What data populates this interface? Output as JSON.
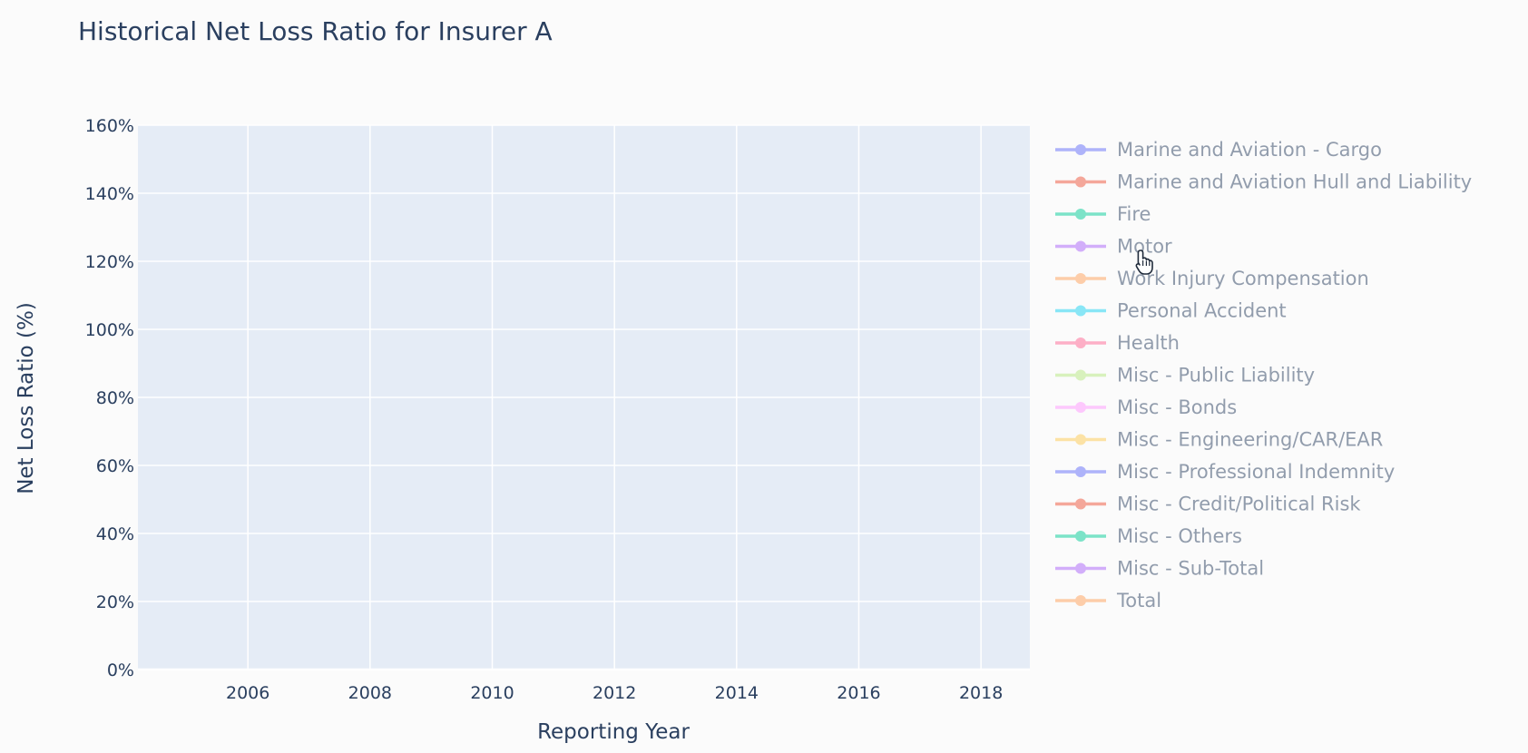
{
  "chart_data": {
    "type": "line",
    "title": "Historical Net Loss Ratio for Insurer A",
    "xlabel": "Reporting Year",
    "ylabel": "Net Loss Ratio (%)",
    "x_ticks": [
      "2006",
      "2008",
      "2010",
      "2012",
      "2014",
      "2016",
      "2018"
    ],
    "x_tick_values": [
      2006,
      2008,
      2010,
      2012,
      2014,
      2016,
      2018
    ],
    "xlim": [
      2004.2,
      2018.8
    ],
    "y_ticks": [
      "0%",
      "20%",
      "40%",
      "60%",
      "80%",
      "100%",
      "120%",
      "140%",
      "160%"
    ],
    "y_tick_values": [
      0,
      20,
      40,
      60,
      80,
      100,
      120,
      140,
      160
    ],
    "ylim": [
      0,
      160
    ],
    "grid": true,
    "legend_position": "right",
    "series": [
      {
        "name": "Marine and Aviation - Cargo",
        "color": "#636efa",
        "values": []
      },
      {
        "name": "Marine and Aviation Hull and Liability",
        "color": "#ef553b",
        "values": []
      },
      {
        "name": "Fire",
        "color": "#00cc96",
        "values": []
      },
      {
        "name": "Motor",
        "color": "#ab63fa",
        "values": []
      },
      {
        "name": "Work Injury Compensation",
        "color": "#ffa15a",
        "values": []
      },
      {
        "name": "Personal Accident",
        "color": "#19d3f3",
        "values": []
      },
      {
        "name": "Health",
        "color": "#ff6692",
        "values": []
      },
      {
        "name": "Misc - Public Liability",
        "color": "#b6e880",
        "values": []
      },
      {
        "name": "Misc - Bonds",
        "color": "#ff97ff",
        "values": []
      },
      {
        "name": "Misc - Engineering/CAR/EAR",
        "color": "#fecb52",
        "values": []
      },
      {
        "name": "Misc - Professional Indemnity",
        "color": "#636efa",
        "values": []
      },
      {
        "name": "Misc - Credit/Political Risk",
        "color": "#ef553b",
        "values": []
      },
      {
        "name": "Misc - Others",
        "color": "#00cc96",
        "values": []
      },
      {
        "name": "Misc - Sub-Total",
        "color": "#ab63fa",
        "values": []
      },
      {
        "name": "Total",
        "color": "#ffa15a",
        "values": []
      }
    ]
  },
  "colors": {
    "plot_background": "#e5ecf6",
    "paper_background": "#fbfbfb",
    "gridline": "#ffffff",
    "text": "#2a3f5f"
  }
}
